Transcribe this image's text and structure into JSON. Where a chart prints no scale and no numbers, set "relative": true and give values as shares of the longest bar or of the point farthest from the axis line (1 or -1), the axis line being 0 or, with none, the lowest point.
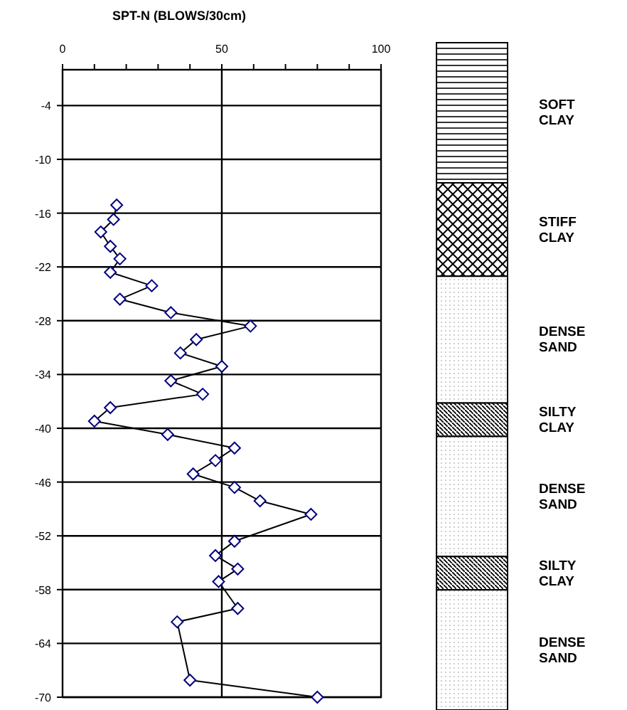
{
  "chart_data": [
    {
      "type": "line",
      "xlabel": "SPT-N (BLOWS/30cm)",
      "xlim": [
        0,
        100
      ],
      "xticks": [
        0,
        {
          "value": 10,
          "label": null
        },
        {
          "value": 20,
          "label": null
        },
        {
          "value": 30,
          "label": null
        },
        {
          "value": 40,
          "label": null
        },
        50,
        {
          "value": 60,
          "label": null
        },
        {
          "value": 70,
          "label": null
        },
        {
          "value": 80,
          "label": null
        },
        {
          "value": 90,
          "label": null
        },
        100
      ],
      "ylim": [
        -70,
        0
      ],
      "yticks": [
        -4,
        -10,
        -16,
        -22,
        -28,
        -34,
        -40,
        -46,
        -52,
        -58,
        -64,
        -70
      ],
      "grid": true,
      "marker": "diamond",
      "line_style": "solid",
      "series": [
        {
          "color": "#000080",
          "x": [
            17,
            16,
            12,
            15,
            18,
            15,
            28,
            18,
            34,
            59,
            42,
            37,
            50,
            34,
            44,
            15,
            10,
            33,
            54,
            48,
            41,
            54,
            62,
            78,
            54,
            48,
            55,
            49,
            55,
            36,
            40,
            80
          ],
          "values": [
            -15.1,
            -16.7,
            -18.1,
            -19.7,
            -21.1,
            -22.6,
            -24.1,
            -25.6,
            -27.1,
            -28.6,
            -30.1,
            -31.6,
            -33.1,
            -34.7,
            -36.2,
            -37.7,
            -39.2,
            -40.7,
            -42.2,
            -43.6,
            -45.1,
            -46.6,
            -48.1,
            -49.6,
            -52.6,
            -54.2,
            -55.7,
            -57.1,
            -60.1,
            -61.6,
            -68.1,
            -70
          ]
        }
      ]
    },
    {
      "type": "bar",
      "stacked": true,
      "relative": true,
      "categories": [
        null
      ],
      "series": [
        {
          "name": "SOFT CLAY",
          "color": "#000000",
          "values": [
            -0.21
          ]
        },
        {
          "name": "STIFF CLAY",
          "color": "#000000",
          "values": [
            -0.14
          ]
        },
        {
          "name": "DENSE SAND",
          "color": "#000000",
          "values": [
            -0.19
          ]
        },
        {
          "name": "SILTY CLAY",
          "color": "#000000",
          "values": [
            -0.05
          ]
        },
        {
          "name": "DENSE SAND",
          "color": "#000000",
          "values": [
            -0.18
          ]
        },
        {
          "name": "SILTY CLAY",
          "color": "#000000",
          "values": [
            -0.05
          ]
        },
        {
          "name": "DENSE SAND",
          "color": "#000000",
          "values": [
            -0.18
          ]
        }
      ]
    }
  ]
}
